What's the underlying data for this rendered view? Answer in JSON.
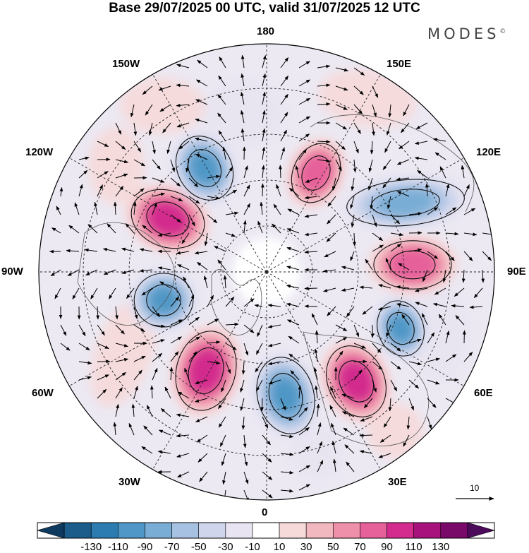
{
  "title": "Base 29/07/2025 00 UTC, valid 31/07/2025 12 UTC",
  "brand": {
    "name": "MODES",
    "mark": "©"
  },
  "map": {
    "projection": "north-polar-stereographic",
    "longitude_labels": {
      "top": "180",
      "bottom": "0",
      "left": "90W",
      "right": "90E",
      "upper_left_1": "150W",
      "upper_left_2": "120W",
      "upper_right_1": "150E",
      "upper_right_2": "120E",
      "lower_left_1": "60W",
      "lower_left_2": "30W",
      "lower_right_1": "60E",
      "lower_right_2": "30E"
    },
    "wind_reference_value": "10",
    "anomaly_centers": [
      {
        "name": "high-150W",
        "sign": "positive",
        "peak": 110
      },
      {
        "name": "low-165W",
        "sign": "negative",
        "peak": -90
      },
      {
        "name": "high-160E",
        "sign": "positive",
        "peak": 90
      },
      {
        "name": "low-120E",
        "sign": "negative",
        "peak": -70
      },
      {
        "name": "high-90E",
        "sign": "positive",
        "peak": 90
      },
      {
        "name": "low-75E",
        "sign": "negative",
        "peak": -90
      },
      {
        "name": "high-45E",
        "sign": "positive",
        "peak": 110
      },
      {
        "name": "low-10E",
        "sign": "negative",
        "peak": -90
      },
      {
        "name": "high-45W",
        "sign": "positive",
        "peak": 110
      },
      {
        "name": "low-80W",
        "sign": "negative",
        "peak": -90
      }
    ]
  },
  "colorbar": {
    "colors": [
      "#0d3a5e",
      "#1b5c8a",
      "#2c7cb1",
      "#4f97c6",
      "#79add6",
      "#a7c1e2",
      "#cfd6ec",
      "#e8e4f1",
      "#ffffff",
      "#f6d9d9",
      "#f2b8bf",
      "#ee90a9",
      "#e6619a",
      "#d32b8e",
      "#a8127d",
      "#7a0a6a",
      "#4b0a5a"
    ],
    "ticks": [
      "-130",
      "-110",
      "-90",
      "-70",
      "-50",
      "-30",
      "-10",
      "10",
      "30",
      "50",
      "70",
      "90",
      "110",
      "130"
    ]
  }
}
